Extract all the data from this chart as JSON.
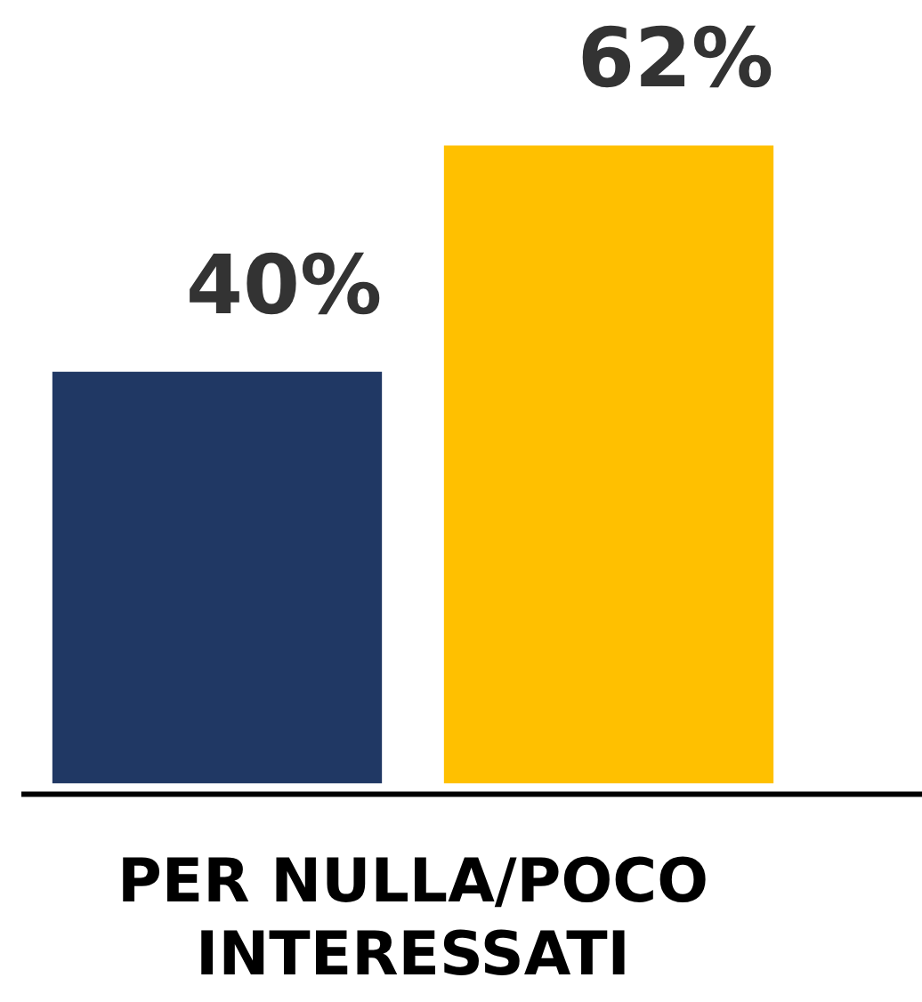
{
  "chart_data": {
    "type": "bar",
    "categories": [
      null,
      null
    ],
    "xlabel": "PER NULLA/POCO INTERESSATI",
    "values": [
      40,
      62
    ],
    "colors": [
      "#203864",
      "#ffc000"
    ],
    "value_labels": [
      "40%",
      "62%"
    ],
    "grid": false,
    "legend": false
  }
}
